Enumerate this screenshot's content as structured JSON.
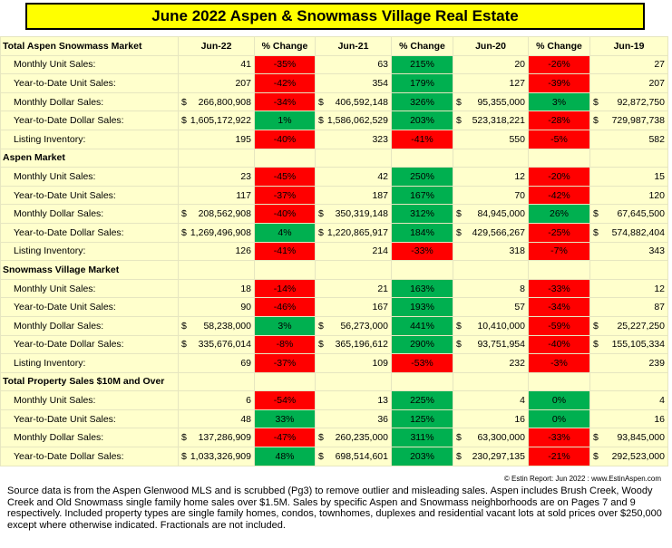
{
  "title": "June 2022 Aspen & Snowmass Village Real Estate",
  "columns": [
    "Jun-22",
    "% Change",
    "Jun-21",
    "% Change",
    "Jun-20",
    "% Change",
    "Jun-19"
  ],
  "fills": {
    "up": "#00b050",
    "down": "#ff0000"
  },
  "sections": [
    {
      "name": "Total Aspen Snowmass Market",
      "rows": [
        {
          "label": "Monthly Unit Sales:",
          "cells": [
            "41",
            "-35%",
            "63",
            "215%",
            "20",
            "-26%",
            "27"
          ],
          "change_fill": [
            "down",
            "up",
            "down"
          ]
        },
        {
          "label": "Year-to-Date Unit Sales:",
          "cells": [
            "207",
            "-42%",
            "354",
            "179%",
            "127",
            "-39%",
            "207"
          ],
          "change_fill": [
            "down",
            "up",
            "down"
          ]
        },
        {
          "label": "Monthly Dollar Sales:",
          "cells": [
            [
              "$",
              "266,800,908"
            ],
            "-34%",
            [
              "$",
              "406,592,148"
            ],
            "326%",
            [
              "$",
              "95,355,000"
            ],
            "3%",
            [
              "$",
              "92,872,750"
            ]
          ],
          "change_fill": [
            "down",
            "up",
            "up"
          ]
        },
        {
          "label": "Year-to-Date Dollar Sales:",
          "cells": [
            [
              "$",
              "1,605,172,922"
            ],
            "1%",
            [
              "$",
              "1,586,062,529"
            ],
            "203%",
            [
              "$",
              "523,318,221"
            ],
            "-28%",
            [
              "$",
              "729,987,738"
            ]
          ],
          "change_fill": [
            "up",
            "up",
            "down"
          ]
        },
        {
          "label": "Listing Inventory:",
          "cells": [
            "195",
            "-40%",
            "323",
            "-41%",
            "550",
            "-5%",
            "582"
          ],
          "change_fill": [
            "down",
            "down",
            "down"
          ]
        }
      ]
    },
    {
      "name": "Aspen Market",
      "rows": [
        {
          "label": "Monthly Unit Sales:",
          "cells": [
            "23",
            "-45%",
            "42",
            "250%",
            "12",
            "-20%",
            "15"
          ],
          "change_fill": [
            "down",
            "up",
            "down"
          ]
        },
        {
          "label": "Year-to-Date Unit Sales:",
          "cells": [
            "117",
            "-37%",
            "187",
            "167%",
            "70",
            "-42%",
            "120"
          ],
          "change_fill": [
            "down",
            "up",
            "down"
          ]
        },
        {
          "label": "Monthly Dollar Sales:",
          "cells": [
            [
              "$",
              "208,562,908"
            ],
            "-40%",
            [
              "$",
              "350,319,148"
            ],
            "312%",
            [
              "$",
              "84,945,000"
            ],
            "26%",
            [
              "$",
              "67,645,500"
            ]
          ],
          "change_fill": [
            "down",
            "up",
            "up"
          ]
        },
        {
          "label": "Year-to-Date Dollar Sales:",
          "cells": [
            [
              "$",
              "1,269,496,908"
            ],
            "4%",
            [
              "$",
              "1,220,865,917"
            ],
            "184%",
            [
              "$",
              "429,566,267"
            ],
            "-25%",
            [
              "$",
              "574,882,404"
            ]
          ],
          "change_fill": [
            "up",
            "up",
            "down"
          ]
        },
        {
          "label": "Listing Inventory:",
          "cells": [
            "126",
            "-41%",
            "214",
            "-33%",
            "318",
            "-7%",
            "343"
          ],
          "change_fill": [
            "down",
            "down",
            "down"
          ]
        }
      ]
    },
    {
      "name": "Snowmass Village Market",
      "rows": [
        {
          "label": "Monthly Unit Sales:",
          "cells": [
            "18",
            "-14%",
            "21",
            "163%",
            "8",
            "-33%",
            "12"
          ],
          "change_fill": [
            "down",
            "up",
            "down"
          ]
        },
        {
          "label": "Year-to-Date Unit Sales:",
          "cells": [
            "90",
            "-46%",
            "167",
            "193%",
            "57",
            "-34%",
            "87"
          ],
          "change_fill": [
            "down",
            "up",
            "down"
          ]
        },
        {
          "label": "Monthly Dollar Sales:",
          "cells": [
            [
              "$",
              "58,238,000"
            ],
            "3%",
            [
              "$",
              "56,273,000"
            ],
            "441%",
            [
              "$",
              "10,410,000"
            ],
            "-59%",
            [
              "$",
              "25,227,250"
            ]
          ],
          "change_fill": [
            "up",
            "up",
            "down"
          ]
        },
        {
          "label": "Year-to-Date Dollar Sales:",
          "cells": [
            [
              "$",
              "335,676,014"
            ],
            "-8%",
            [
              "$",
              "365,196,612"
            ],
            "290%",
            [
              "$",
              "93,751,954"
            ],
            "-40%",
            [
              "$",
              "155,105,334"
            ]
          ],
          "change_fill": [
            "down",
            "up",
            "down"
          ]
        },
        {
          "label": "Listing Inventory:",
          "cells": [
            "69",
            "-37%",
            "109",
            "-53%",
            "232",
            "-3%",
            "239"
          ],
          "change_fill": [
            "down",
            "down",
            "down"
          ]
        }
      ]
    },
    {
      "name": "Total Property Sales $10M and Over",
      "rows": [
        {
          "label": "Monthly Unit Sales:",
          "cells": [
            "6",
            "-54%",
            "13",
            "225%",
            "4",
            "0%",
            "4"
          ],
          "change_fill": [
            "down",
            "up",
            "up"
          ]
        },
        {
          "label": "Year-to-Date Unit Sales:",
          "cells": [
            "48",
            "33%",
            "36",
            "125%",
            "16",
            "0%",
            "16"
          ],
          "change_fill": [
            "up",
            "up",
            "up"
          ]
        },
        {
          "label": "Monthly Dollar Sales:",
          "cells": [
            [
              "$",
              "137,286,909"
            ],
            "-47%",
            [
              "$",
              "260,235,000"
            ],
            "311%",
            [
              "$",
              "63,300,000"
            ],
            "-33%",
            [
              "$",
              "93,845,000"
            ]
          ],
          "change_fill": [
            "down",
            "up",
            "down"
          ]
        },
        {
          "label": "Year-to-Date Dollar Sales:",
          "cells": [
            [
              "$",
              "1,033,326,909"
            ],
            "48%",
            [
              "$",
              "698,514,601"
            ],
            "203%",
            [
              "$",
              "230,297,135"
            ],
            "-21%",
            [
              "$",
              "292,523,000"
            ]
          ],
          "change_fill": [
            "up",
            "up",
            "down"
          ]
        }
      ]
    }
  ],
  "credit": "© Estin Report: Jun 2022 : www.EstinAspen.com",
  "note": "Source data is from the Aspen Glenwood MLS and is scrubbed (Pg3) to remove outlier and misleading sales. Aspen includes Brush Creek, Woody Creek and Old Snowmass single family home sales over $1.5M. Sales by specific Aspen and Snowmass neighborhoods are on Pages 7 and 9 respectively. Included property types are single family homes, condos, townhomes, duplexes and residential vacant lots at sold prices over $250,000 except where otherwise indicated. Fractionals are not included."
}
